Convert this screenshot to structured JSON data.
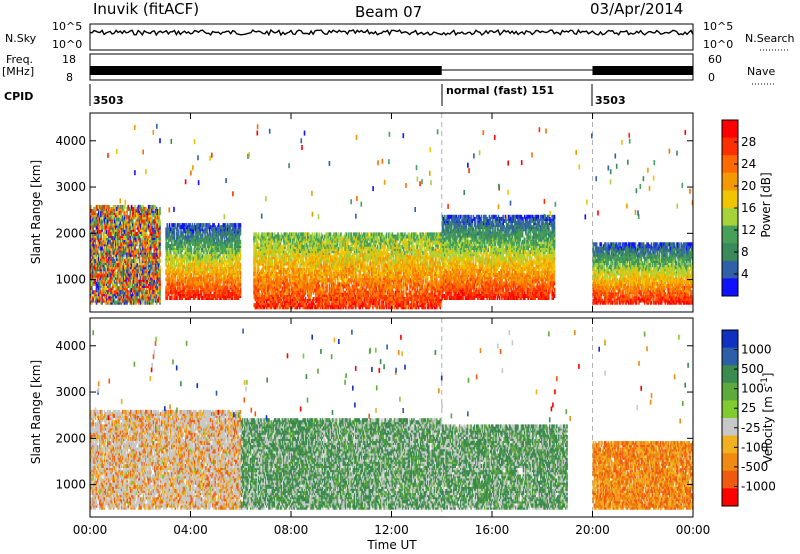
{
  "header": {
    "station": "Inuvik (fitACF)",
    "beam": "Beam 07",
    "date": "03/Apr/2014"
  },
  "top_panels": {
    "nsky_label": "N.Sky",
    "nsky_ticks": [
      "10^5",
      "10^0"
    ],
    "nsearch_label": "N.Search",
    "nsearch_ticks": [
      "10^5",
      "10^0"
    ],
    "freq_label": "Freq.",
    "freq_unit": "[MHz]",
    "freq_ticks": [
      "18",
      "8"
    ],
    "nave_label": "Nave",
    "nave_ticks": [
      "60",
      "0"
    ],
    "cpid_label": "CPID",
    "cpid_segments": [
      {
        "label": "3503",
        "start_h": 0,
        "end_h": 14
      },
      {
        "label": "normal (fast) 151",
        "start_h": 14,
        "end_h": 20
      },
      {
        "label": "3503",
        "start_h": 20,
        "end_h": 24
      }
    ]
  },
  "chart_data": [
    {
      "type": "heatmap",
      "title": "",
      "xlabel": "",
      "ylabel": "Slant Range [km]",
      "xlim_hours": [
        0,
        24
      ],
      "ylim_km": [
        300,
        4600
      ],
      "y_ticks": [
        1000,
        2000,
        3000,
        4000
      ],
      "x_ticks": [
        "00:00",
        "04:00",
        "08:00",
        "12:00",
        "16:00",
        "20:00",
        "00:00"
      ],
      "colorbar": {
        "label": "Power [dB]",
        "ticks": [
          "28",
          "24",
          "20",
          "16",
          "12",
          "8",
          "4"
        ],
        "colors": [
          "#ff0000",
          "#ff3000",
          "#ff6a00",
          "#f39a00",
          "#f0c400",
          "#a6d23a",
          "#46a05a",
          "#3a8a5a",
          "#3060a8",
          "#1010ff"
        ]
      },
      "regions": [
        {
          "t0": 0.0,
          "t1": 2.8,
          "r0": 500,
          "r1": 2600,
          "level": "mixed"
        },
        {
          "t0": 3.0,
          "t1": 6.0,
          "r0": 600,
          "r1": 2200,
          "level": "high"
        },
        {
          "t0": 6.5,
          "t1": 14.0,
          "r0": 400,
          "r1": 2000,
          "level": "very-high"
        },
        {
          "t0": 14.0,
          "t1": 18.5,
          "r0": 600,
          "r1": 2400,
          "level": "high"
        },
        {
          "t0": 20.0,
          "t1": 24.0,
          "r0": 500,
          "r1": 1800,
          "level": "high"
        }
      ]
    },
    {
      "type": "heatmap",
      "title": "",
      "xlabel": "Time UT",
      "ylabel": "Slant Range [km]",
      "xlim_hours": [
        0,
        24
      ],
      "ylim_km": [
        300,
        4600
      ],
      "y_ticks": [
        1000,
        2000,
        3000,
        4000
      ],
      "x_ticks": [
        "00:00",
        "04:00",
        "08:00",
        "12:00",
        "16:00",
        "20:00",
        "00:00"
      ],
      "colorbar": {
        "label": "Velocity [m s",
        "label_sup": "-1",
        "label_end": "]",
        "ticks": [
          "1000",
          "500",
          "100",
          "25",
          "-25",
          "-100",
          "-500",
          "-1000"
        ],
        "colors": [
          "#1030c0",
          "#2c5fa8",
          "#3b8a50",
          "#5eaa3c",
          "#80cc30",
          "#c8c8c8",
          "#f0b020",
          "#f08a10",
          "#f05a10",
          "#ff0000"
        ]
      },
      "regions": [
        {
          "t0": 0.0,
          "t1": 6.0,
          "r0": 500,
          "r1": 2600,
          "level": "mixed-orange"
        },
        {
          "t0": 6.0,
          "t1": 14.0,
          "r0": 500,
          "r1": 2400,
          "level": "green-grey"
        },
        {
          "t0": 14.0,
          "t1": 19.0,
          "r0": 500,
          "r1": 2300,
          "level": "green-grey"
        },
        {
          "t0": 20.0,
          "t1": 24.0,
          "r0": 500,
          "r1": 1900,
          "level": "orange"
        }
      ]
    }
  ],
  "colors": {
    "axis": "#000000",
    "dashed_marker": "#b0b0b0"
  }
}
